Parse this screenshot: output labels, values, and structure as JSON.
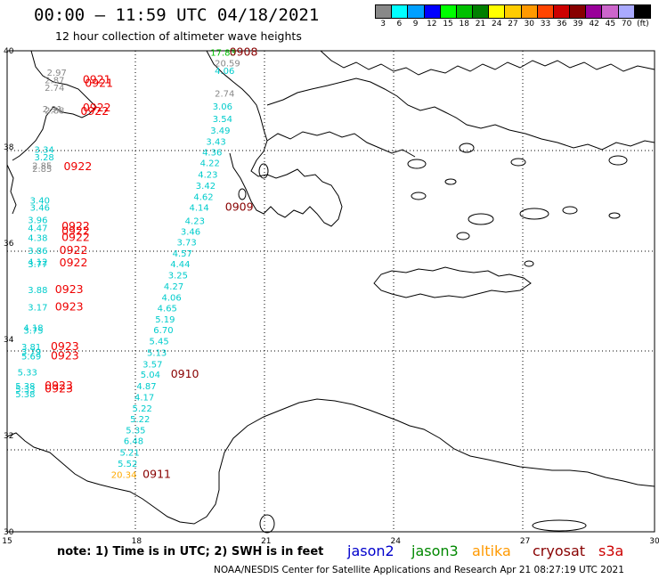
{
  "header": {
    "title": "00:00 – 11:59 UTC 04/18/2021",
    "subtitle": "12 hour collection of altimeter wave heights"
  },
  "color_scale": {
    "colors": [
      "#888888",
      "#00ffff",
      "#00a0ff",
      "#0000ff",
      "#00ff00",
      "#00c000",
      "#008000",
      "#ffff00",
      "#ffcc00",
      "#ff9900",
      "#ff4400",
      "#cc0000",
      "#880000",
      "#990099",
      "#cc66cc",
      "#aaaaff",
      "#000000"
    ],
    "labels": [
      "3",
      "6",
      "9",
      "12",
      "15",
      "18",
      "21",
      "24",
      "27",
      "30",
      "33",
      "36",
      "39",
      "42",
      "45",
      "70",
      "(ft)"
    ]
  },
  "axes": {
    "x_ticks": [
      "15",
      "18",
      "21",
      "24",
      "27",
      "30"
    ],
    "y_ticks": [
      "40",
      "38",
      "36",
      "34",
      "32",
      "30"
    ]
  },
  "observations": [
    {
      "value": "17.83",
      "color": "#00c000",
      "x": 19.71,
      "y": 39.9
    },
    {
      "time": "0908",
      "color": "#880000",
      "x": 20.15,
      "y": 39.9
    },
    {
      "value": "20.59",
      "color": "#888888",
      "x": 19.81,
      "y": 39.68
    },
    {
      "value": "4.06",
      "color": "#00cccc",
      "x": 19.81,
      "y": 39.52
    },
    {
      "value": "2.74",
      "color": "#888888",
      "x": 19.81,
      "y": 39.05
    },
    {
      "value": "3.06",
      "color": "#00cccc",
      "x": 19.76,
      "y": 38.78
    },
    {
      "value": "3.54",
      "color": "#00cccc",
      "x": 19.76,
      "y": 38.52
    },
    {
      "value": "3.49",
      "color": "#00cccc",
      "x": 19.71,
      "y": 38.28
    },
    {
      "value": "3.43",
      "color": "#00cccc",
      "x": 19.61,
      "y": 38.05
    },
    {
      "value": "4.36",
      "color": "#00cccc",
      "x": 19.52,
      "y": 37.82
    },
    {
      "value": "4.22",
      "color": "#00cccc",
      "x": 19.47,
      "y": 37.6
    },
    {
      "value": "4.23",
      "color": "#00cccc",
      "x": 19.42,
      "y": 37.36
    },
    {
      "value": "3.42",
      "color": "#00cccc",
      "x": 19.37,
      "y": 37.13
    },
    {
      "value": "4.62",
      "color": "#00cccc",
      "x": 19.32,
      "y": 36.9
    },
    {
      "value": "4.14",
      "color": "#00cccc",
      "x": 19.22,
      "y": 36.68
    },
    {
      "time": "0909",
      "color": "#880000",
      "x": 20.05,
      "y": 36.68
    },
    {
      "value": "4.23",
      "color": "#00cccc",
      "x": 19.12,
      "y": 36.4
    },
    {
      "value": "3.46",
      "color": "#00cccc",
      "x": 19.02,
      "y": 36.18
    },
    {
      "value": "3.73",
      "color": "#00cccc",
      "x": 18.93,
      "y": 35.95
    },
    {
      "value": "4.57",
      "color": "#00cccc",
      "x": 18.83,
      "y": 35.72
    },
    {
      "value": "4.44",
      "color": "#00cccc",
      "x": 18.78,
      "y": 35.5
    },
    {
      "value": "3.25",
      "color": "#00cccc",
      "x": 18.73,
      "y": 35.27
    },
    {
      "value": "4.27",
      "color": "#00cccc",
      "x": 18.63,
      "y": 35.04
    },
    {
      "value": "4.06",
      "color": "#00cccc",
      "x": 18.58,
      "y": 34.81
    },
    {
      "value": "4.65",
      "color": "#00cccc",
      "x": 18.48,
      "y": 34.58
    },
    {
      "value": "5.19",
      "color": "#00cccc",
      "x": 18.43,
      "y": 34.35
    },
    {
      "value": "6.70",
      "color": "#00cccc",
      "x": 18.39,
      "y": 34.13
    },
    {
      "value": "5.45",
      "color": "#00cccc",
      "x": 18.29,
      "y": 33.9
    },
    {
      "value": "5.13",
      "color": "#00cccc",
      "x": 18.24,
      "y": 33.66
    },
    {
      "value": "3.57",
      "color": "#00cccc",
      "x": 18.14,
      "y": 33.42
    },
    {
      "value": "5.04",
      "color": "#00cccc",
      "x": 18.09,
      "y": 33.2
    },
    {
      "time": "0910",
      "color": "#880000",
      "x": 18.79,
      "y": 33.2
    },
    {
      "value": "4.87",
      "color": "#00cccc",
      "x": 18.0,
      "y": 32.96
    },
    {
      "value": "4.17",
      "color": "#00cccc",
      "x": 17.95,
      "y": 32.73
    },
    {
      "value": "5.22",
      "color": "#00cccc",
      "x": 17.9,
      "y": 32.5
    },
    {
      "value": "5.22",
      "color": "#00cccc",
      "x": 17.85,
      "y": 32.28
    },
    {
      "value": "5.35",
      "color": "#00cccc",
      "x": 17.75,
      "y": 32.05
    },
    {
      "value": "6.48",
      "color": "#00cccc",
      "x": 17.7,
      "y": 31.82
    },
    {
      "value": "5.21",
      "color": "#00cccc",
      "x": 17.61,
      "y": 31.58
    },
    {
      "value": "5.52",
      "color": "#00cccc",
      "x": 17.56,
      "y": 31.35
    },
    {
      "value": "20.34",
      "color": "#ffaa00",
      "x": 17.41,
      "y": 31.12
    },
    {
      "time": "0911",
      "color": "#880000",
      "x": 18.14,
      "y": 31.12
    },
    {
      "value": "2.97",
      "color": "#888888",
      "x": 15.92,
      "y": 39.48
    },
    {
      "value": "2.87",
      "color": "#888888",
      "x": 15.87,
      "y": 39.32
    },
    {
      "value": "2.74",
      "color": "#888888",
      "x": 15.87,
      "y": 39.17
    },
    {
      "time": "0921",
      "color": "#ee0000",
      "x": 16.75,
      "y": 39.32
    },
    {
      "time": "0921",
      "color": "#ee0000",
      "x": 16.8,
      "y": 39.25
    },
    {
      "value": "2.91",
      "color": "#888888",
      "x": 15.82,
      "y": 38.72
    },
    {
      "value": "2.88",
      "color": "#888888",
      "x": 15.87,
      "y": 38.69
    },
    {
      "time": "0922",
      "color": "#ee0000",
      "x": 16.75,
      "y": 38.74
    },
    {
      "time": "0922",
      "color": "#ee0000",
      "x": 16.7,
      "y": 38.67
    },
    {
      "value": "3.34",
      "color": "#00cccc",
      "x": 15.63,
      "y": 37.88
    },
    {
      "value": "3.28",
      "color": "#00cccc",
      "x": 15.63,
      "y": 37.72
    },
    {
      "value": "2.85",
      "color": "#888888",
      "x": 15.58,
      "y": 37.55
    },
    {
      "value": "2.85",
      "color": "#888888",
      "x": 15.58,
      "y": 37.48
    },
    {
      "time": "0922",
      "color": "#ee0000",
      "x": 16.31,
      "y": 37.52
    },
    {
      "value": "3.40",
      "color": "#00cccc",
      "x": 15.53,
      "y": 36.82
    },
    {
      "value": "3.46",
      "color": "#00cccc",
      "x": 15.53,
      "y": 36.68
    },
    {
      "value": "3.96",
      "color": "#00cccc",
      "x": 15.48,
      "y": 36.42
    },
    {
      "value": "4.47",
      "color": "#00cccc",
      "x": 15.48,
      "y": 36.25
    },
    {
      "value": "4.38",
      "color": "#00cccc",
      "x": 15.48,
      "y": 36.05
    },
    {
      "time": "0922",
      "color": "#ee0000",
      "x": 16.26,
      "y": 36.28
    },
    {
      "time": "0922",
      "color": "#ee0000",
      "x": 16.26,
      "y": 36.18
    },
    {
      "time": "0922",
      "color": "#ee0000",
      "x": 16.26,
      "y": 36.05
    },
    {
      "value": "3.86",
      "color": "#00cccc",
      "x": 15.48,
      "y": 35.78
    },
    {
      "time": "0922",
      "color": "#ee0000",
      "x": 16.21,
      "y": 35.78
    },
    {
      "value": "4.12",
      "color": "#00cccc",
      "x": 15.48,
      "y": 35.55
    },
    {
      "value": "3.77",
      "color": "#00cccc",
      "x": 15.48,
      "y": 35.5
    },
    {
      "time": "0922",
      "color": "#ee0000",
      "x": 16.21,
      "y": 35.52
    },
    {
      "value": "3.88",
      "color": "#00cccc",
      "x": 15.48,
      "y": 34.96
    },
    {
      "time": "0923",
      "color": "#ee0000",
      "x": 16.11,
      "y": 34.96
    },
    {
      "value": "3.17",
      "color": "#00cccc",
      "x": 15.48,
      "y": 34.6
    },
    {
      "time": "0923",
      "color": "#ee0000",
      "x": 16.11,
      "y": 34.6
    },
    {
      "value": "4.18",
      "color": "#00cccc",
      "x": 15.38,
      "y": 34.18
    },
    {
      "value": "3.75",
      "color": "#00cccc",
      "x": 15.38,
      "y": 34.12
    },
    {
      "value": "3.81",
      "color": "#00cccc",
      "x": 15.33,
      "y": 33.78
    },
    {
      "value": "3.79",
      "color": "#00cccc",
      "x": 15.33,
      "y": 33.68
    },
    {
      "value": "5.69",
      "color": "#00cccc",
      "x": 15.33,
      "y": 33.58
    },
    {
      "time": "0923",
      "color": "#ee0000",
      "x": 16.01,
      "y": 33.78
    },
    {
      "time": "0923",
      "color": "#ee0000",
      "x": 16.01,
      "y": 33.58
    },
    {
      "value": "5.33",
      "color": "#00cccc",
      "x": 15.24,
      "y": 33.25
    },
    {
      "value": "5.38",
      "color": "#00cccc",
      "x": 15.19,
      "y": 32.96
    },
    {
      "value": "5.33",
      "color": "#00cccc",
      "x": 15.19,
      "y": 32.9
    },
    {
      "value": "5.38",
      "color": "#00cccc",
      "x": 15.19,
      "y": 32.8
    },
    {
      "time": "0923",
      "color": "#ee0000",
      "x": 15.87,
      "y": 32.96
    },
    {
      "time": "0923",
      "color": "#ee0000",
      "x": 15.87,
      "y": 32.9
    }
  ],
  "footer": {
    "note": "note:  1) Time is in UTC;  2) SWH is in feet",
    "legend": [
      {
        "label": "jason2",
        "color": "#0000cc"
      },
      {
        "label": "jason3",
        "color": "#008800"
      },
      {
        "label": "altika",
        "color": "#ff9900"
      },
      {
        "label": "cryosat",
        "color": "#880000"
      },
      {
        "label": "s3a",
        "color": "#cc0000"
      }
    ],
    "credit": "NOAA/NESDIS Center for Satellite Applications and Research    Apr 21 08:27:19 UTC 2021"
  }
}
